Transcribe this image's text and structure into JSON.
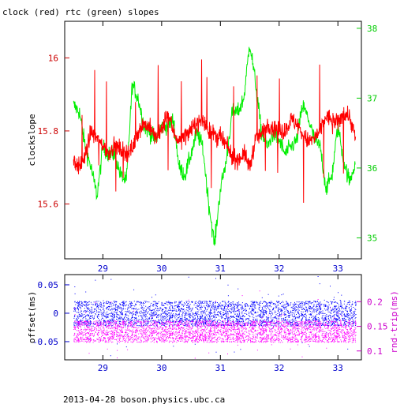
{
  "chart_data": [
    {
      "type": "line",
      "title": "clock (red) rtc (green) slopes",
      "ylabel_left": "clockslope",
      "ylabel_right": "",
      "x_ticks": [
        "29",
        "30",
        "31",
        "32",
        "33"
      ],
      "x_tick_values": [
        29,
        30,
        31,
        32,
        33
      ],
      "xlim": [
        28.35,
        33.4
      ],
      "ylim_left": [
        15.45,
        16.1
      ],
      "y_ticks_left": [
        "16",
        "15.8",
        "15.6"
      ],
      "y_tick_values_left": [
        16.0,
        15.8,
        15.6
      ],
      "ylim_right": [
        34.7,
        38.1
      ],
      "y_ticks_right": [
        "38",
        "37",
        "36",
        "35"
      ],
      "y_tick_values_right": [
        38,
        37,
        36,
        35
      ],
      "grid": false,
      "colors": {
        "clock": "#ff0000",
        "rtc": "#00ee00",
        "left_axis": "#cc0000",
        "right_axis": "#00cc00"
      },
      "series": [
        {
          "color": "#ff0000",
          "axis": "left",
          "x": [
            28.5,
            28.6,
            28.7,
            28.8,
            28.9,
            29.0,
            29.1,
            29.2,
            29.3,
            29.4,
            29.5,
            29.6,
            29.7,
            29.8,
            29.9,
            30.0,
            30.1,
            30.2,
            30.3,
            30.4,
            30.5,
            30.6,
            30.7,
            30.8,
            30.9,
            31.0,
            31.1,
            31.2,
            31.3,
            31.4,
            31.5,
            31.6,
            31.7,
            31.8,
            31.9,
            32.0,
            32.1,
            32.2,
            32.3,
            32.4,
            32.5,
            32.6,
            32.7,
            32.8,
            32.9,
            33.0,
            33.1,
            33.2,
            33.3
          ],
          "y": [
            15.72,
            15.7,
            15.73,
            15.8,
            15.78,
            15.76,
            15.74,
            15.76,
            15.75,
            15.74,
            15.75,
            15.8,
            15.82,
            15.81,
            15.78,
            15.8,
            15.85,
            15.8,
            15.77,
            15.79,
            15.8,
            15.82,
            15.83,
            15.8,
            15.79,
            15.78,
            15.76,
            15.73,
            15.72,
            15.74,
            15.7,
            15.78,
            15.79,
            15.82,
            15.81,
            15.8,
            15.8,
            15.83,
            15.82,
            15.79,
            15.77,
            15.78,
            15.8,
            15.84,
            15.83,
            15.82,
            15.85,
            15.84,
            15.78
          ]
        },
        {
          "color": "#00ee00",
          "axis": "right",
          "x": [
            28.5,
            28.6,
            28.7,
            28.8,
            28.9,
            29.0,
            29.1,
            29.2,
            29.3,
            29.4,
            29.5,
            29.6,
            29.7,
            29.8,
            29.9,
            30.0,
            30.1,
            30.2,
            30.3,
            30.4,
            30.5,
            30.6,
            30.7,
            30.8,
            30.9,
            31.0,
            31.1,
            31.2,
            31.3,
            31.4,
            31.5,
            31.6,
            31.7,
            31.8,
            31.9,
            32.0,
            32.1,
            32.2,
            32.3,
            32.4,
            32.5,
            32.6,
            32.7,
            32.8,
            32.9,
            33.0,
            33.1,
            33.2,
            33.3
          ],
          "y": [
            36.9,
            36.8,
            36.3,
            36.0,
            35.6,
            36.3,
            36.2,
            36.2,
            35.9,
            35.8,
            37.2,
            37.0,
            36.6,
            36.5,
            36.4,
            36.6,
            36.6,
            36.7,
            36.0,
            35.9,
            36.2,
            36.5,
            36.3,
            35.5,
            34.9,
            35.7,
            36.1,
            36.8,
            36.8,
            37.0,
            37.8,
            37.2,
            36.5,
            36.3,
            36.5,
            36.4,
            36.2,
            36.3,
            36.4,
            36.9,
            36.7,
            36.4,
            36.3,
            35.7,
            35.9,
            36.6,
            36.1,
            35.8,
            36.1
          ]
        }
      ]
    },
    {
      "type": "scatter",
      "title": "",
      "ylabel_left": "offset(ms)",
      "ylabel_right": "rnd-trip(ms)",
      "x_ticks": [
        "29",
        "30",
        "31",
        "32",
        "33"
      ],
      "x_tick_values": [
        29,
        30,
        31,
        32,
        33
      ],
      "xlim": [
        28.35,
        33.4
      ],
      "ylim_left": [
        -0.082,
        0.068
      ],
      "y_ticks_left": [
        "0.05",
        "0",
        "-0.05"
      ],
      "y_tick_values_left": [
        0.05,
        0,
        -0.05
      ],
      "ylim_right": [
        0.082,
        0.255
      ],
      "y_ticks_right": [
        "0.2",
        "0.15",
        "0.1"
      ],
      "y_tick_values_right": [
        0.2,
        0.15,
        0.1
      ],
      "grid": false,
      "colors": {
        "offset": "#0000ff",
        "rndtrip": "#ff00ff",
        "left_axis": "#0000cc",
        "right_axis": "#cc00cc"
      },
      "series": [
        {
          "color": "#0000ff",
          "axis": "left",
          "x_range": [
            28.5,
            33.3
          ],
          "mean": 0.0,
          "spread": 0.022
        },
        {
          "color": "#ff00ff",
          "axis": "right",
          "x_range": [
            28.5,
            33.3
          ],
          "mean": 0.14,
          "spread": 0.022
        }
      ]
    }
  ],
  "footer": "2013-04-28 boson.physics.ubc.ca"
}
